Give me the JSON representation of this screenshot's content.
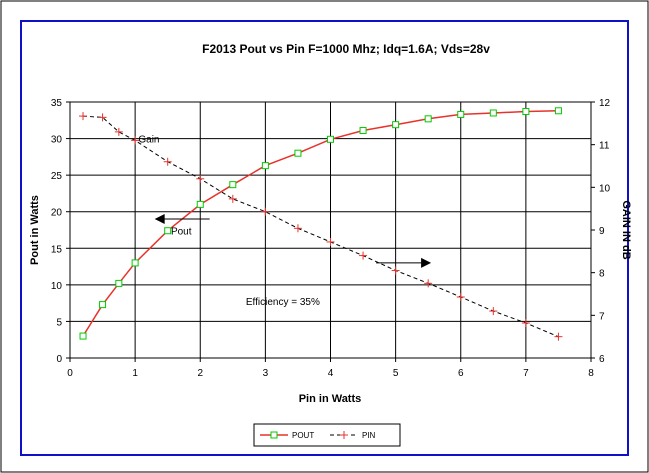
{
  "chart_data": {
    "type": "line",
    "title": "F2013  Pout vs Pin  F=1000 Mhz;  Idq=1.6A;  Vds=28v",
    "xlabel": "Pin in Watts",
    "ylabel": "Pout in Watts",
    "y2label": "GAIN IN dB",
    "xlim": [
      0,
      8
    ],
    "ylim": [
      0,
      35
    ],
    "y2lim": [
      6,
      12
    ],
    "x_ticks": [
      "0",
      "1",
      "2",
      "3",
      "4",
      "5",
      "6",
      "7",
      "8"
    ],
    "y_ticks": [
      "0",
      "5",
      "10",
      "15",
      "20",
      "25",
      "30",
      "35"
    ],
    "y2_ticks": [
      "6",
      "7",
      "8",
      "9",
      "10",
      "11",
      "12"
    ],
    "grid": true,
    "legend_position": "bottom",
    "series": [
      {
        "name": "POUT",
        "axis": "left",
        "color": "#e8322b",
        "marker": "square",
        "marker_color": "#00cc00",
        "x": [
          0.2,
          0.5,
          0.75,
          1.0,
          1.5,
          2.0,
          2.5,
          3.0,
          3.5,
          4.0,
          4.5,
          5.0,
          5.5,
          6.0,
          6.5,
          7.0,
          7.5
        ],
        "values": [
          3.0,
          7.3,
          10.2,
          13.0,
          17.4,
          21.0,
          23.7,
          26.3,
          28.0,
          29.9,
          31.1,
          31.9,
          32.7,
          33.3,
          33.5,
          33.7,
          33.8
        ]
      },
      {
        "name": "PIN",
        "axis": "right",
        "color": "#000000",
        "marker": "plus",
        "marker_color": "#e8322b",
        "dashed": true,
        "x": [
          0.2,
          0.5,
          0.75,
          1.0,
          1.5,
          2.0,
          2.5,
          3.0,
          3.5,
          4.0,
          4.5,
          5.0,
          5.5,
          6.0,
          6.5,
          7.0,
          7.5
        ],
        "values": [
          11.67,
          11.64,
          11.3,
          11.1,
          10.6,
          10.2,
          9.73,
          9.43,
          9.04,
          8.72,
          8.4,
          8.05,
          7.75,
          7.43,
          7.1,
          6.82,
          6.5
        ]
      }
    ],
    "annotations": [
      {
        "text": "Gain",
        "x": 1.05,
        "y": 30.0,
        "align": "left"
      },
      {
        "text": "Pout",
        "x": 1.55,
        "y": 17.4,
        "align": "left"
      },
      {
        "text": "Efficiency = 35%",
        "x": 2.7,
        "y": 7.8,
        "align": "left"
      }
    ],
    "arrows": [
      {
        "direction": "left",
        "x": 1.3,
        "y": 19.0
      },
      {
        "direction": "right",
        "x": 4.7,
        "y": 13.0
      }
    ]
  }
}
